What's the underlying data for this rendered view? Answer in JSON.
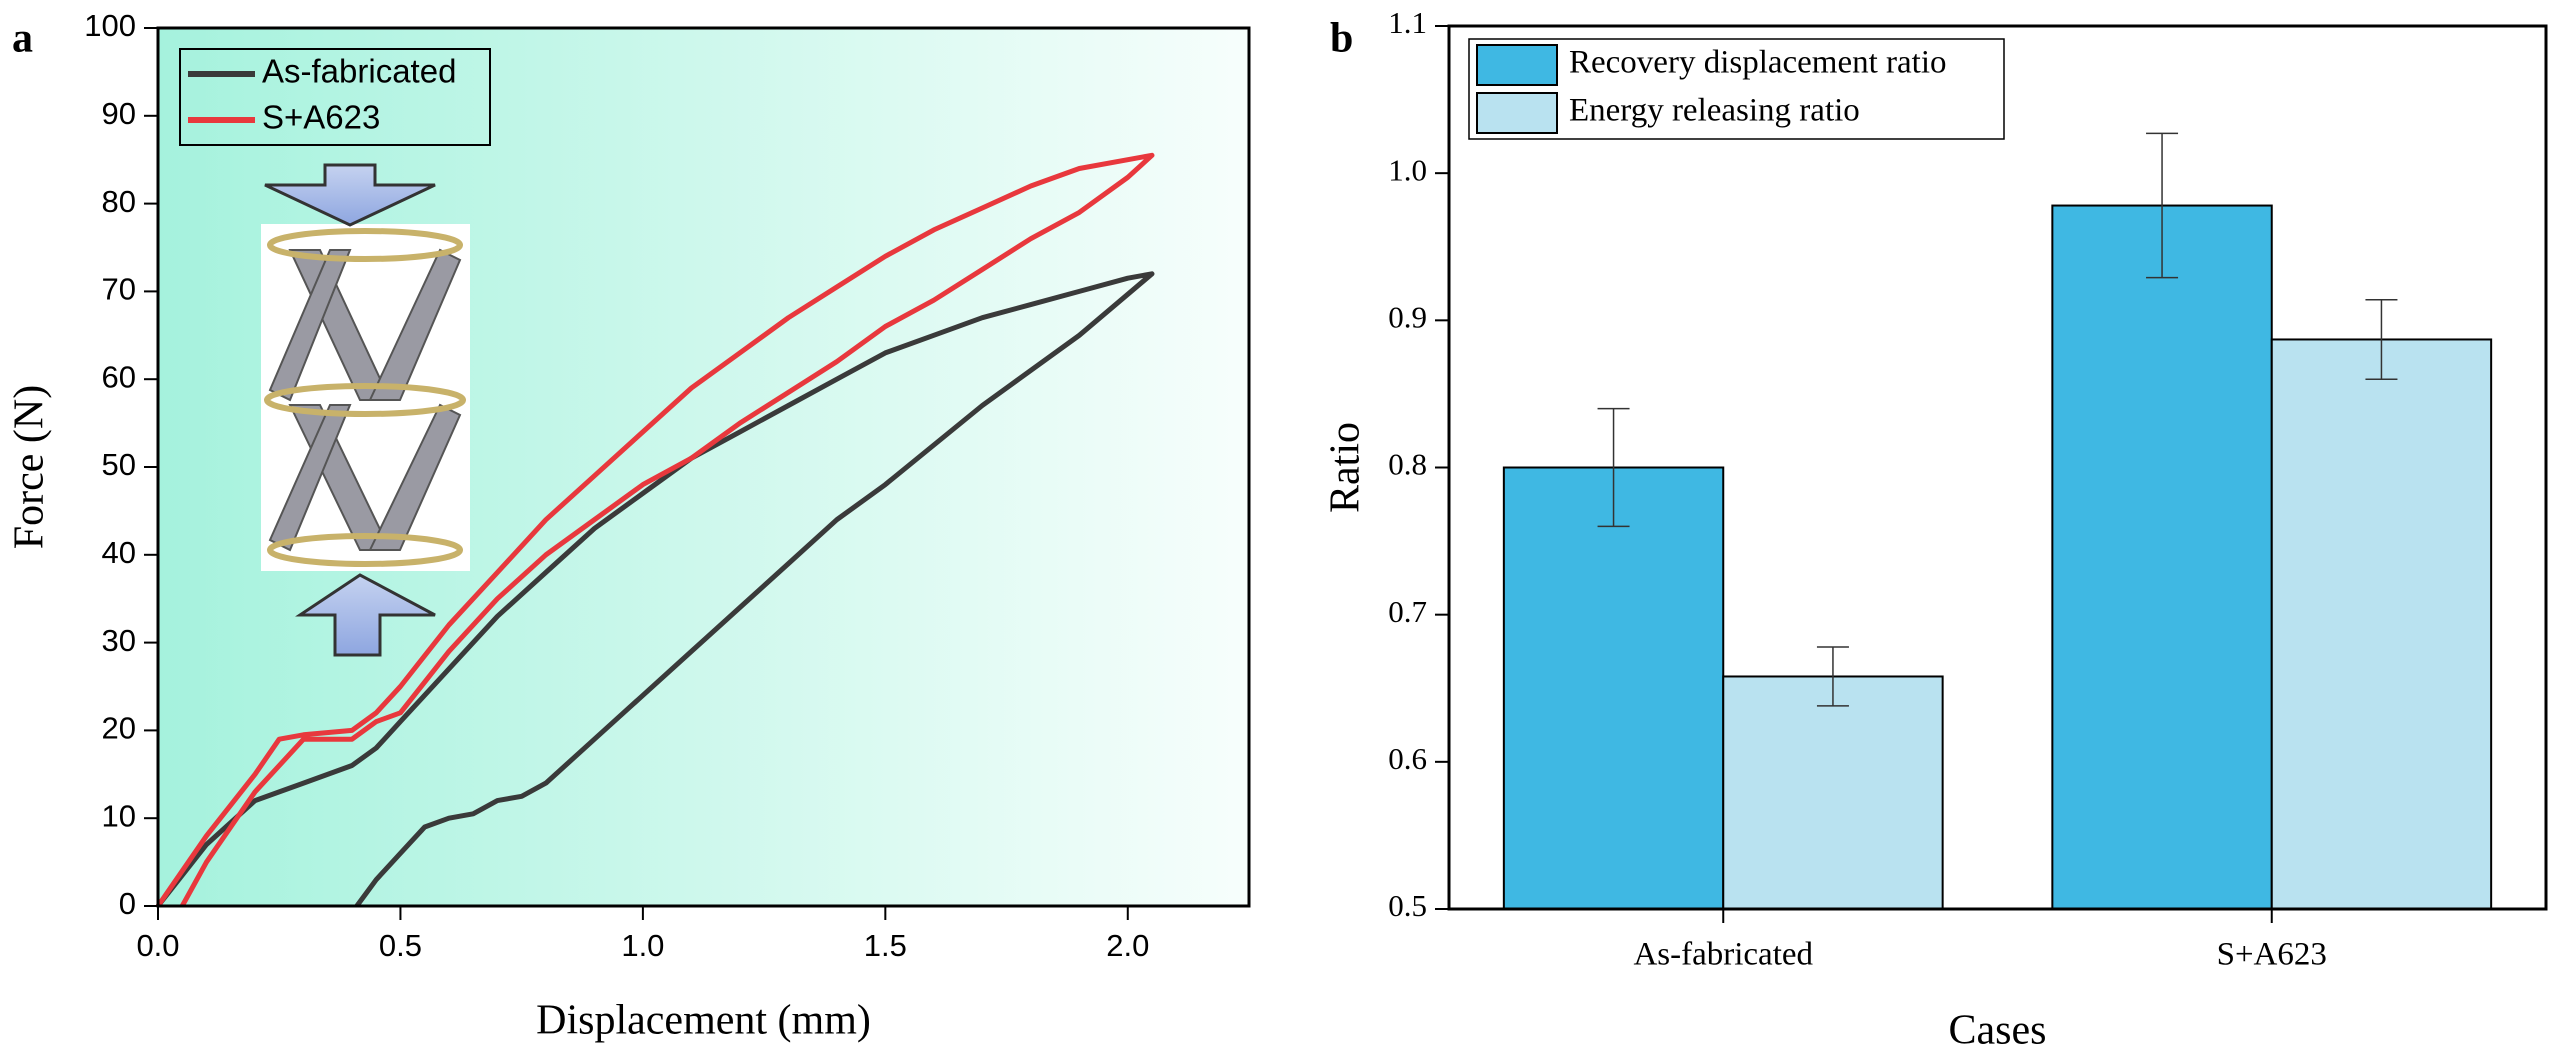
{
  "chart_data": [
    {
      "type": "line",
      "panel": "a",
      "xlabel": "Displacement (mm)",
      "ylabel": "Force (N)",
      "xlim": [
        0,
        2.25
      ],
      "xticks": [
        {
          "value": 0,
          "label": "0.0"
        },
        0.5,
        {
          "value": 1,
          "label": "1.0"
        },
        1.5,
        {
          "value": 2,
          "label": "2.0"
        }
      ],
      "ylim": [
        0,
        100
      ],
      "yticks": [
        0,
        10,
        20,
        30,
        40,
        50,
        60,
        70,
        80,
        90,
        100
      ],
      "legend": "upper left",
      "series": [
        {
          "name": "As-fabricated",
          "color": "#3a3a3a",
          "x": [
            0,
            0.1,
            0.2,
            0.25,
            0.3,
            0.4,
            0.45,
            0.5,
            0.6,
            0.7,
            0.8,
            0.9,
            1.0,
            1.1,
            1.2,
            1.3,
            1.4,
            1.5,
            1.6,
            1.7,
            1.8,
            1.9,
            2.0,
            2.05,
            1.9,
            1.7,
            1.5,
            1.4,
            1.3,
            1.2,
            1.1,
            1.0,
            0.9,
            0.8,
            0.75,
            0.7,
            0.65,
            0.6,
            0.55,
            0.5,
            0.45,
            0.41
          ],
          "values": [
            0,
            7,
            12,
            13,
            14,
            16,
            18,
            21,
            27,
            33,
            38,
            43,
            47,
            51,
            54,
            57,
            60,
            63,
            65,
            67,
            68.5,
            70,
            71.5,
            72,
            65,
            57,
            48,
            44,
            39,
            34,
            29,
            24,
            19,
            14,
            12.5,
            12,
            10.5,
            10,
            9,
            6,
            3,
            0
          ]
        },
        {
          "name": "S+A623",
          "color": "#e8383d",
          "x": [
            0,
            0.1,
            0.2,
            0.25,
            0.3,
            0.4,
            0.45,
            0.5,
            0.6,
            0.7,
            0.8,
            0.9,
            1.0,
            1.1,
            1.2,
            1.3,
            1.4,
            1.5,
            1.6,
            1.7,
            1.8,
            1.9,
            2.0,
            2.05,
            2.0,
            1.9,
            1.8,
            1.7,
            1.6,
            1.5,
            1.4,
            1.3,
            1.2,
            1.1,
            1.0,
            0.9,
            0.8,
            0.7,
            0.6,
            0.5,
            0.45,
            0.4,
            0.3,
            0.2,
            0.1,
            0.05
          ],
          "values": [
            0,
            8,
            15,
            19,
            19.5,
            20,
            22,
            25,
            32,
            38,
            44,
            49,
            54,
            59,
            63,
            67,
            70.5,
            74,
            77,
            79.5,
            82,
            84,
            85,
            85.5,
            83,
            79,
            76,
            72.5,
            69,
            66,
            62,
            58.5,
            55,
            51,
            48,
            44,
            40,
            35,
            29,
            22,
            21,
            19,
            19,
            13,
            5,
            0
          ]
        }
      ]
    },
    {
      "type": "bar",
      "panel": "b",
      "xlabel": "Cases",
      "ylabel": "Ratio",
      "categories": [
        "As-fabricated",
        "S+A623"
      ],
      "ylim": [
        0.5,
        1.1
      ],
      "yticks": [
        0.5,
        0.6,
        0.7,
        0.8,
        0.9,
        {
          "value": 1,
          "label": "1.0"
        },
        1.1
      ],
      "legend": "upper left",
      "series": [
        {
          "name": "Recovery displacement ratio",
          "color": "#3fb8e3",
          "values": [
            0.8,
            0.978
          ],
          "errors": [
            0.04,
            0.049
          ]
        },
        {
          "name": "Energy releasing ratio",
          "color": "#b9e2f0",
          "values": [
            0.658,
            0.887
          ],
          "errors": [
            0.02,
            0.027
          ]
        }
      ]
    }
  ]
}
